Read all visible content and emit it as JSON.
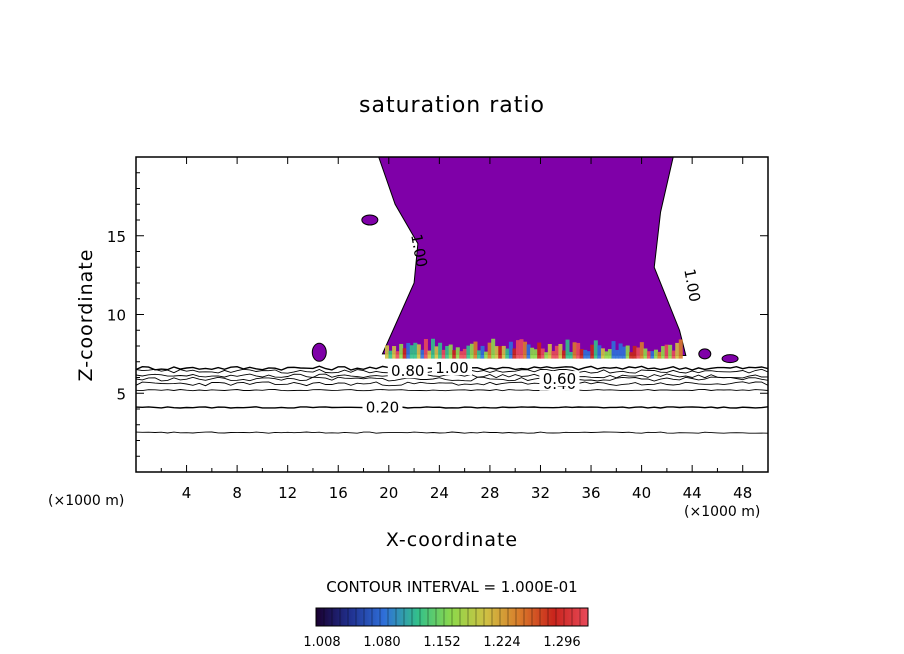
{
  "chart_data": {
    "type": "contour",
    "title": "saturation ratio",
    "xlabel": "X-coordinate",
    "ylabel": "Z-coordinate",
    "x_unit_label": "(×1000 m)",
    "x_unit_label_right": "(×1000 m)",
    "xlim": [
      0,
      50
    ],
    "ylim": [
      0,
      20
    ],
    "xticks": [
      4,
      8,
      12,
      16,
      20,
      24,
      28,
      32,
      36,
      40,
      44,
      48
    ],
    "yticks": [
      5,
      10,
      15
    ],
    "contour_interval_text": "CONTOUR INTERVAL = 1.000E-01",
    "contours": [
      {
        "level": 0.2,
        "label": "0.20",
        "z": 4.1
      },
      {
        "level": 0.3,
        "label": "",
        "z": 2.5
      },
      {
        "level": 0.4,
        "label": "0.40",
        "z": 5.6
      },
      {
        "level": 0.5,
        "label": "",
        "z": 5.2
      },
      {
        "level": 0.6,
        "label": "0.60",
        "z": 5.9
      },
      {
        "level": 0.7,
        "label": "",
        "z": 6.1
      },
      {
        "level": 0.8,
        "label": "0.80",
        "z": 6.4
      },
      {
        "level": 1.0,
        "label": "1.00",
        "z": 6.6
      }
    ],
    "inline_labels": [
      {
        "text": "1.00",
        "x": 22.0,
        "z": 14.0,
        "angle": 80
      },
      {
        "text": "1.00",
        "x": 43.6,
        "z": 11.8,
        "angle": 80
      }
    ],
    "supersaturated_region": {
      "x_start": 19.5,
      "x_end": 43.5,
      "z_bottom": 7.0,
      "z_top": 20,
      "fill": "#7f00a8"
    },
    "colorbar": {
      "tick_labels": [
        "1.008",
        "1.080",
        "1.152",
        "1.224",
        "1.296"
      ],
      "colors": [
        "#1a0030",
        "#20308f",
        "#2f6fd9",
        "#33c08a",
        "#8ed84a",
        "#cfc043",
        "#d97a2a",
        "#c9241c",
        "#e84a5a"
      ]
    }
  }
}
